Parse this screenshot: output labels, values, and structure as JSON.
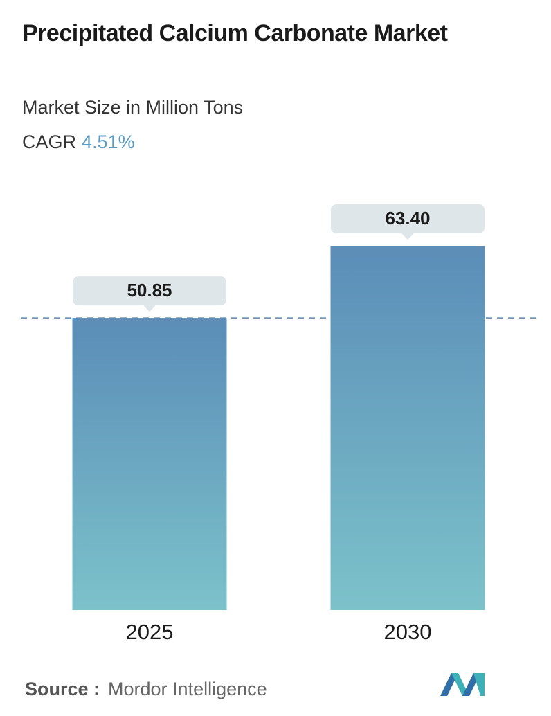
{
  "chart_data": {
    "type": "bar",
    "title": "Precipitated Calcium Carbonate Market",
    "subtitle": "Market Size in Million Tons",
    "cagr_label": "CAGR",
    "cagr_value": "4.51%",
    "categories": [
      "2025",
      "2030"
    ],
    "values": [
      50.85,
      63.4
    ],
    "value_labels": [
      "50.85",
      "63.40"
    ],
    "source_label": "Source :",
    "source": "Mordor Intelligence"
  }
}
